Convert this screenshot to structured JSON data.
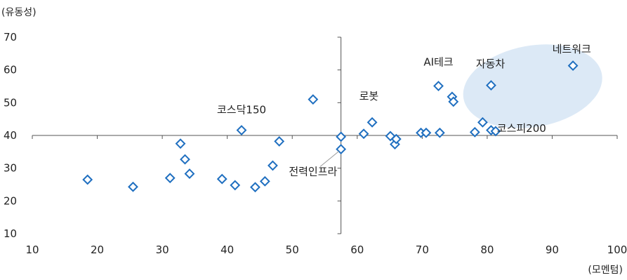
{
  "chart_data": {
    "type": "scatter",
    "xlabel": "(모멘텀)",
    "ylabel": "(유동성)",
    "xlim": [
      10,
      100
    ],
    "ylim": [
      10,
      70
    ],
    "x_ticks": [
      10,
      20,
      30,
      40,
      50,
      60,
      70,
      80,
      90,
      100
    ],
    "y_ticks": [
      10,
      20,
      30,
      40,
      50,
      60,
      70
    ],
    "crosshair": {
      "x": 57.5,
      "y": 40
    },
    "marker_color": "#1f6fc0",
    "highlight_color": "#dce9f6",
    "highlight_region": {
      "center": [
        87,
        55
      ],
      "note": "upper-right cluster"
    },
    "points": [
      [
        18.5,
        26.5
      ],
      [
        25.5,
        24.3
      ],
      [
        31.2,
        27
      ],
      [
        32.8,
        37.5
      ],
      [
        33.5,
        32.7
      ],
      [
        34.2,
        28.3
      ],
      [
        39.2,
        26.7
      ],
      [
        41.2,
        24.8
      ],
      [
        42.2,
        41.6
      ],
      [
        44.3,
        24.2
      ],
      [
        45.8,
        26
      ],
      [
        47,
        30.8
      ],
      [
        48,
        38.2
      ],
      [
        53.2,
        51
      ],
      [
        57.5,
        39.6
      ],
      [
        57.5,
        35.8
      ],
      [
        61,
        40.5
      ],
      [
        62.3,
        44
      ],
      [
        65.1,
        39.8
      ],
      [
        65.8,
        37.3
      ],
      [
        66,
        38.9
      ],
      [
        69.8,
        40.8
      ],
      [
        70.6,
        40.8
      ],
      [
        72.5,
        55.1
      ],
      [
        72.7,
        40.8
      ],
      [
        74.6,
        51.8
      ],
      [
        74.8,
        50.3
      ],
      [
        78.1,
        41
      ],
      [
        79.3,
        44
      ],
      [
        80.6,
        55.3
      ],
      [
        80.6,
        41.6
      ],
      [
        81.3,
        41.3
      ],
      [
        93.2,
        61.3
      ]
    ],
    "annotations": [
      {
        "label": "네트워크",
        "x": 93,
        "y": 65.3
      },
      {
        "label": "AI테크",
        "x": 72.5,
        "y": 61.3
      },
      {
        "label": "자동차",
        "x": 80.5,
        "y": 60.8
      },
      {
        "label": "로봇",
        "x": 61.8,
        "y": 50.9
      },
      {
        "label": "코스닥150",
        "x": 42.2,
        "y": 46.7
      },
      {
        "label": "코스피200",
        "x": 81.5,
        "y": 41.1
      },
      {
        "label": "전력인프라",
        "x": 53.2,
        "y": 27.9
      }
    ]
  }
}
